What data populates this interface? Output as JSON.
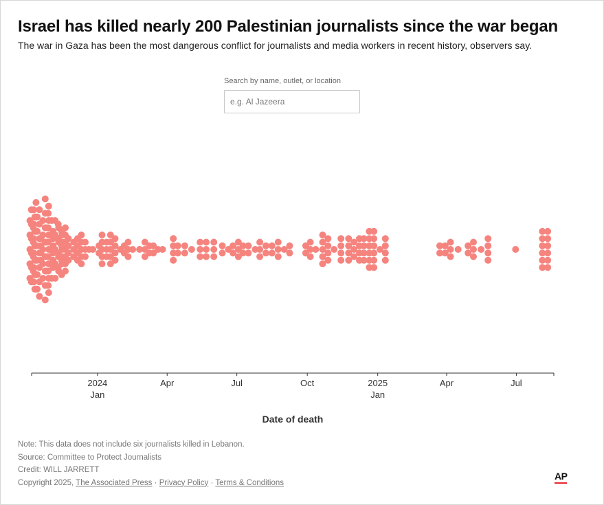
{
  "header": {
    "title": "Israel has killed nearly 200 Palestinian journalists since the war began",
    "subtitle": "The war in Gaza has been the most dangerous conflict for journalists and media workers in recent history, observers say."
  },
  "search": {
    "label": "Search by name, outlet, or location",
    "placeholder": "e.g. Al Jazeera",
    "value": ""
  },
  "chart_data": {
    "type": "scatter",
    "subtype": "beeswarm",
    "x_axis": {
      "label": "Date of death",
      "range": [
        "2023-10-07",
        "2025-08-19"
      ],
      "ticks": [
        {
          "date": "2024-01-01",
          "label": "2024",
          "sublabel": "Jan"
        },
        {
          "date": "2024-04-01",
          "label": "Apr"
        },
        {
          "date": "2024-07-01",
          "label": "Jul"
        },
        {
          "date": "2024-10-01",
          "label": "Oct"
        },
        {
          "date": "2025-01-01",
          "label": "2025",
          "sublabel": "Jan"
        },
        {
          "date": "2025-04-01",
          "label": "Apr"
        },
        {
          "date": "2025-07-01",
          "label": "Jul"
        }
      ]
    },
    "point_color": "#f5847f",
    "grid": false,
    "groups": [
      {
        "date": "2023-10-07",
        "count": 9
      },
      {
        "date": "2023-10-09",
        "count": 12
      },
      {
        "date": "2023-10-12",
        "count": 12
      },
      {
        "date": "2023-10-15",
        "count": 14
      },
      {
        "date": "2023-10-19",
        "count": 4
      },
      {
        "date": "2023-10-24",
        "count": 9
      },
      {
        "date": "2023-10-27",
        "count": 15
      },
      {
        "date": "2023-10-31",
        "count": 11
      },
      {
        "date": "2023-11-04",
        "count": 6
      },
      {
        "date": "2023-11-09",
        "count": 9
      },
      {
        "date": "2023-11-13",
        "count": 8
      },
      {
        "date": "2023-11-16",
        "count": 5
      },
      {
        "date": "2023-11-20",
        "count": 7
      },
      {
        "date": "2023-11-24",
        "count": 4
      },
      {
        "date": "2023-12-01",
        "count": 3
      },
      {
        "date": "2023-12-06",
        "count": 4
      },
      {
        "date": "2023-12-11",
        "count": 5
      },
      {
        "date": "2023-12-16",
        "count": 3
      },
      {
        "date": "2023-12-21",
        "count": 1
      },
      {
        "date": "2023-12-26",
        "count": 1
      },
      {
        "date": "2024-01-03",
        "count": 2
      },
      {
        "date": "2024-01-07",
        "count": 5
      },
      {
        "date": "2024-01-13",
        "count": 3
      },
      {
        "date": "2024-01-18",
        "count": 5
      },
      {
        "date": "2024-01-24",
        "count": 4
      },
      {
        "date": "2024-01-31",
        "count": 1
      },
      {
        "date": "2024-02-05",
        "count": 2
      },
      {
        "date": "2024-02-10",
        "count": 3
      },
      {
        "date": "2024-02-16",
        "count": 1
      },
      {
        "date": "2024-02-25",
        "count": 1
      },
      {
        "date": "2024-03-03",
        "count": 3
      },
      {
        "date": "2024-03-09",
        "count": 2
      },
      {
        "date": "2024-03-14",
        "count": 2
      },
      {
        "date": "2024-03-20",
        "count": 1
      },
      {
        "date": "2024-03-26",
        "count": 1
      },
      {
        "date": "2024-04-09",
        "count": 4
      },
      {
        "date": "2024-04-15",
        "count": 2
      },
      {
        "date": "2024-04-24",
        "count": 2
      },
      {
        "date": "2024-05-03",
        "count": 1
      },
      {
        "date": "2024-05-14",
        "count": 3
      },
      {
        "date": "2024-05-22",
        "count": 3
      },
      {
        "date": "2024-06-01",
        "count": 3
      },
      {
        "date": "2024-06-12",
        "count": 2
      },
      {
        "date": "2024-06-20",
        "count": 1
      },
      {
        "date": "2024-06-26",
        "count": 2
      },
      {
        "date": "2024-07-03",
        "count": 3
      },
      {
        "date": "2024-07-09",
        "count": 2
      },
      {
        "date": "2024-07-16",
        "count": 2
      },
      {
        "date": "2024-07-25",
        "count": 1
      },
      {
        "date": "2024-07-31",
        "count": 3
      },
      {
        "date": "2024-08-08",
        "count": 2
      },
      {
        "date": "2024-08-16",
        "count": 2
      },
      {
        "date": "2024-08-24",
        "count": 3
      },
      {
        "date": "2024-09-01",
        "count": 1
      },
      {
        "date": "2024-09-08",
        "count": 2
      },
      {
        "date": "2024-09-29",
        "count": 2
      },
      {
        "date": "2024-10-05",
        "count": 3
      },
      {
        "date": "2024-10-12",
        "count": 1
      },
      {
        "date": "2024-10-21",
        "count": 5
      },
      {
        "date": "2024-10-28",
        "count": 4
      },
      {
        "date": "2024-11-05",
        "count": 1
      },
      {
        "date": "2024-11-14",
        "count": 4
      },
      {
        "date": "2024-11-24",
        "count": 4
      },
      {
        "date": "2024-12-01",
        "count": 3
      },
      {
        "date": "2024-12-08",
        "count": 4
      },
      {
        "date": "2024-12-14",
        "count": 4
      },
      {
        "date": "2024-12-21",
        "count": 6
      },
      {
        "date": "2024-12-27",
        "count": 6
      },
      {
        "date": "2025-01-04",
        "count": 1
      },
      {
        "date": "2025-01-11",
        "count": 4
      },
      {
        "date": "2025-03-23",
        "count": 2
      },
      {
        "date": "2025-03-30",
        "count": 2
      },
      {
        "date": "2025-04-06",
        "count": 3
      },
      {
        "date": "2025-04-16",
        "count": 1
      },
      {
        "date": "2025-04-29",
        "count": 2
      },
      {
        "date": "2025-05-06",
        "count": 3
      },
      {
        "date": "2025-05-16",
        "count": 1
      },
      {
        "date": "2025-05-25",
        "count": 4
      },
      {
        "date": "2025-06-30",
        "count": 1
      },
      {
        "date": "2025-08-04",
        "count": 6
      },
      {
        "date": "2025-08-11",
        "count": 6
      }
    ]
  },
  "footer": {
    "note": "Note: This data does not include six journalists killed in Lebanon.",
    "source": "Source: Committee to Protect Journalists",
    "credit": "Credit: WILL JARRETT",
    "copyright_prefix": "Copyright 2025,",
    "links": [
      "The Associated Press",
      "Privacy Policy",
      "Terms & Conditions"
    ],
    "separator": "·"
  },
  "logo": {
    "text": "AP",
    "accent_color": "#e8262c"
  }
}
